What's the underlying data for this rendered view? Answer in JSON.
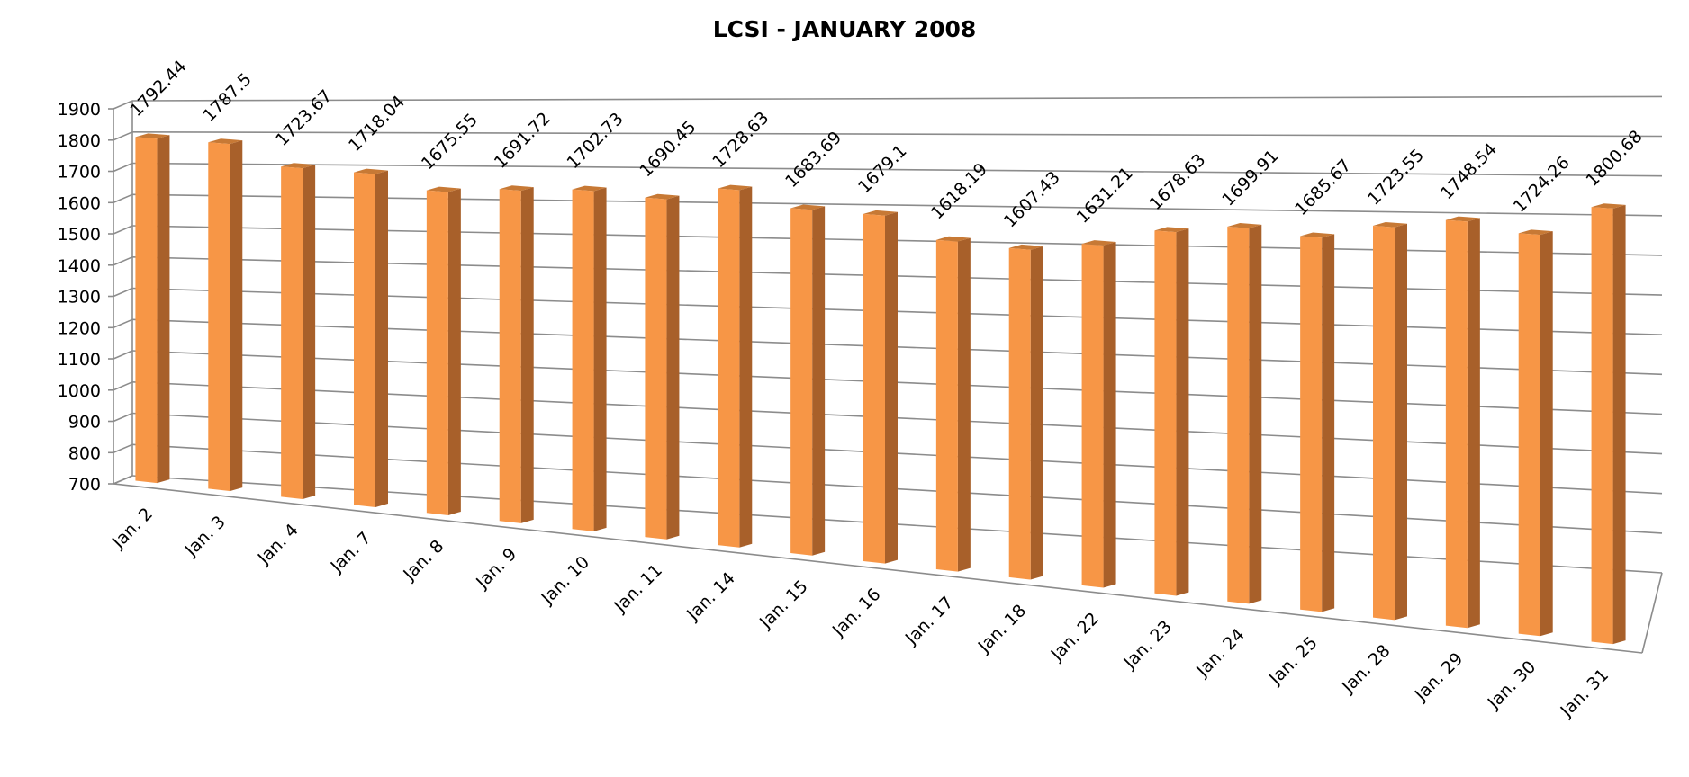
{
  "chart_data": {
    "type": "bar",
    "title": "LCSI - JANUARY 2008",
    "xlabel": "",
    "ylabel": "",
    "ylim": [
      700,
      1900
    ],
    "yticks": [
      700,
      800,
      900,
      1000,
      1100,
      1200,
      1300,
      1400,
      1500,
      1600,
      1700,
      1800,
      1900
    ],
    "grid": true,
    "legend": "none",
    "categories": [
      "Jan. 2",
      "Jan. 3",
      "Jan. 4",
      "Jan. 7",
      "Jan. 8",
      "Jan. 9",
      "Jan. 10",
      "Jan. 11",
      "Jan. 14",
      "Jan. 15",
      "Jan. 16",
      "Jan. 17",
      "Jan. 18",
      "Jan. 22",
      "Jan. 23",
      "Jan. 24",
      "Jan. 25",
      "Jan. 28",
      "Jan. 29",
      "Jan. 30",
      "Jan. 31"
    ],
    "values": [
      1792.44,
      1787.5,
      1723.67,
      1718.04,
      1675.55,
      1691.72,
      1702.73,
      1690.45,
      1728.63,
      1683.69,
      1679.1,
      1618.19,
      1607.43,
      1631.21,
      1678.63,
      1699.91,
      1685.67,
      1723.55,
      1748.54,
      1724.26,
      1800.68
    ],
    "value_labels": [
      "1792.44",
      "1787.5",
      "1723.67",
      "1718.04",
      "1675.55",
      "1691.72",
      "1702.73",
      "1690.45",
      "1728.63",
      "1683.69",
      "1679.1",
      "1618.19",
      "1607.43",
      "1631.21",
      "1678.63",
      "1699.91",
      "1685.67",
      "1723.55",
      "1748.54",
      "1724.26",
      "1800.68"
    ],
    "colors": {
      "bar_front": "#F79646",
      "bar_side": "#A8602A",
      "bar_top": "#C77935",
      "grid": "#8C8C8C"
    }
  }
}
